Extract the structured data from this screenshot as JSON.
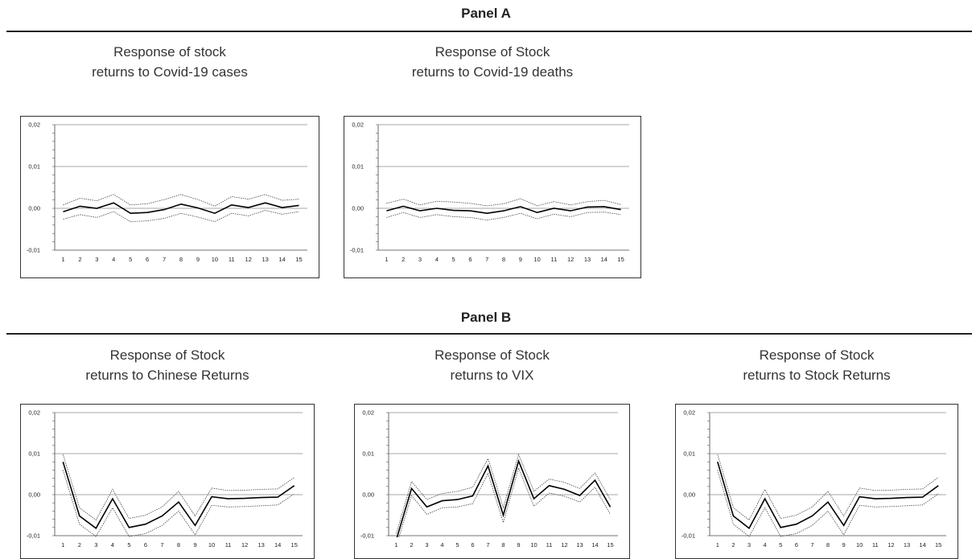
{
  "panels": {
    "a_title": "Panel A",
    "b_title": "Panel B"
  },
  "colors": {
    "response": "#000000",
    "band": "#444444",
    "grid": "#8a8a8a"
  },
  "chart_data": [
    {
      "type": "line",
      "title": "Response of stock\nreturns to Covid-19 cases",
      "x": [
        1,
        2,
        3,
        4,
        5,
        6,
        7,
        8,
        9,
        10,
        11,
        12,
        13,
        14,
        15
      ],
      "ylim": [
        -0.01,
        0.02
      ],
      "yticks": [
        "0,02",
        "0,01",
        "0,00",
        "-0,01"
      ],
      "grid": true,
      "series": [
        {
          "role": "response",
          "values": [
            -0.0008,
            0.0005,
            0.0,
            0.0013,
            -0.0012,
            -0.001,
            -0.0003,
            0.001,
            0.0001,
            -0.0012,
            0.0008,
            0.0002,
            0.0013,
            0.0002,
            0.0007
          ]
        },
        {
          "role": "upper",
          "values": [
            0.0008,
            0.0024,
            0.0018,
            0.0033,
            0.0008,
            0.0011,
            0.0021,
            0.0033,
            0.0021,
            0.0005,
            0.0028,
            0.0022,
            0.0033,
            0.0019,
            0.0022
          ]
        },
        {
          "role": "lower",
          "values": [
            -0.0026,
            -0.0015,
            -0.0022,
            -0.0008,
            -0.0032,
            -0.003,
            -0.0024,
            -0.0012,
            -0.0021,
            -0.0032,
            -0.0012,
            -0.0018,
            -0.0005,
            -0.0014,
            -0.0008
          ]
        }
      ]
    },
    {
      "type": "line",
      "title": "Response of Stock\nreturns to Covid-19 deaths",
      "x": [
        1,
        2,
        3,
        4,
        5,
        6,
        7,
        8,
        9,
        10,
        11,
        12,
        13,
        14,
        15
      ],
      "ylim": [
        -0.01,
        0.02
      ],
      "yticks": [
        "0,02",
        "0,01",
        "0,00",
        "-0,01"
      ],
      "grid": true,
      "series": [
        {
          "role": "response",
          "values": [
            -0.0006,
            0.0005,
            -0.0006,
            0.0,
            -0.0005,
            -0.0006,
            -0.0012,
            -0.0006,
            0.0004,
            -0.001,
            0.0,
            -0.0006,
            0.0003,
            0.0004,
            -0.0003
          ]
        },
        {
          "role": "upper",
          "values": [
            0.0012,
            0.0022,
            0.0008,
            0.0017,
            0.0015,
            0.0012,
            0.0006,
            0.0011,
            0.0023,
            0.0006,
            0.0016,
            0.0008,
            0.0016,
            0.0019,
            0.0009
          ]
        },
        {
          "role": "lower",
          "values": [
            -0.0022,
            -0.001,
            -0.0022,
            -0.0015,
            -0.002,
            -0.0022,
            -0.0028,
            -0.0022,
            -0.0012,
            -0.0025,
            -0.0014,
            -0.002,
            -0.001,
            -0.0009,
            -0.0015
          ]
        }
      ]
    },
    {
      "type": "line",
      "title": "Response of Stock\nreturns to Chinese Returns",
      "x": [
        1,
        2,
        3,
        4,
        5,
        6,
        7,
        8,
        9,
        10,
        11,
        12,
        13,
        14,
        15
      ],
      "ylim": [
        -0.01,
        0.02
      ],
      "yticks": [
        "0,02",
        "0,01",
        "0,00",
        "-0,01"
      ],
      "grid": true,
      "series": [
        {
          "role": "response",
          "values": [
            0.008,
            -0.0052,
            -0.0082,
            -0.001,
            -0.008,
            -0.0072,
            -0.0052,
            -0.0018,
            -0.0075,
            -0.0005,
            -0.001,
            -0.0009,
            -0.0007,
            -0.0006,
            0.0022
          ]
        },
        {
          "role": "upper",
          "values": [
            0.0098,
            -0.0032,
            -0.0062,
            0.0013,
            -0.0058,
            -0.005,
            -0.003,
            0.0008,
            -0.0052,
            0.0016,
            0.001,
            0.0011,
            0.0013,
            0.0014,
            0.0042
          ]
        },
        {
          "role": "lower",
          "values": [
            0.006,
            -0.0072,
            -0.0102,
            -0.0032,
            -0.0102,
            -0.0095,
            -0.0075,
            -0.004,
            -0.0098,
            -0.0026,
            -0.003,
            -0.0029,
            -0.0027,
            -0.0025,
            0.0002
          ]
        }
      ]
    },
    {
      "type": "line",
      "title": "Response of Stock\nreturns to VIX",
      "x": [
        1,
        2,
        3,
        4,
        5,
        6,
        7,
        8,
        9,
        10,
        11,
        12,
        13,
        14,
        15
      ],
      "ylim": [
        -0.01,
        0.02
      ],
      "yticks": [
        "0,02",
        "0,01",
        "0,00",
        "-0,01"
      ],
      "grid": true,
      "series": [
        {
          "role": "response",
          "values": [
            -0.011,
            0.0015,
            -0.003,
            -0.0015,
            -0.0012,
            -0.0003,
            0.007,
            -0.005,
            0.0082,
            -0.001,
            0.0022,
            0.0013,
            -0.0002,
            0.0035,
            -0.003
          ]
        },
        {
          "role": "upper",
          "values": [
            -0.0095,
            0.0032,
            -0.0012,
            0.0003,
            0.0008,
            0.0018,
            0.0088,
            -0.0032,
            0.0098,
            0.0008,
            0.0038,
            0.003,
            0.0015,
            0.0053,
            -0.0012
          ]
        },
        {
          "role": "lower",
          "values": [
            -0.0125,
            -0.0002,
            -0.0048,
            -0.0032,
            -0.003,
            -0.0022,
            0.0052,
            -0.0068,
            0.0065,
            -0.0028,
            0.0004,
            -0.0004,
            -0.0018,
            0.0018,
            -0.0048
          ]
        }
      ]
    },
    {
      "type": "line",
      "title": "Response of Stock\nreturns to Stock Returns",
      "x": [
        1,
        2,
        3,
        4,
        5,
        6,
        7,
        8,
        9,
        10,
        11,
        12,
        13,
        14,
        15
      ],
      "ylim": [
        -0.01,
        0.02
      ],
      "yticks": [
        "0,02",
        "0,01",
        "0,00",
        "-0,01"
      ],
      "grid": true,
      "series": [
        {
          "role": "response",
          "values": [
            0.008,
            -0.0052,
            -0.0082,
            -0.001,
            -0.008,
            -0.0072,
            -0.0052,
            -0.0018,
            -0.0075,
            -0.0005,
            -0.001,
            -0.0009,
            -0.0007,
            -0.0006,
            0.0022
          ]
        },
        {
          "role": "upper",
          "values": [
            0.0098,
            -0.0032,
            -0.0062,
            0.0013,
            -0.0058,
            -0.005,
            -0.003,
            0.0008,
            -0.0052,
            0.0016,
            0.001,
            0.0011,
            0.0013,
            0.0014,
            0.0042
          ]
        },
        {
          "role": "lower",
          "values": [
            0.006,
            -0.0072,
            -0.0102,
            -0.0032,
            -0.0102,
            -0.0095,
            -0.0075,
            -0.004,
            -0.0098,
            -0.0026,
            -0.003,
            -0.0029,
            -0.0027,
            -0.0025,
            0.0002
          ]
        }
      ]
    }
  ]
}
